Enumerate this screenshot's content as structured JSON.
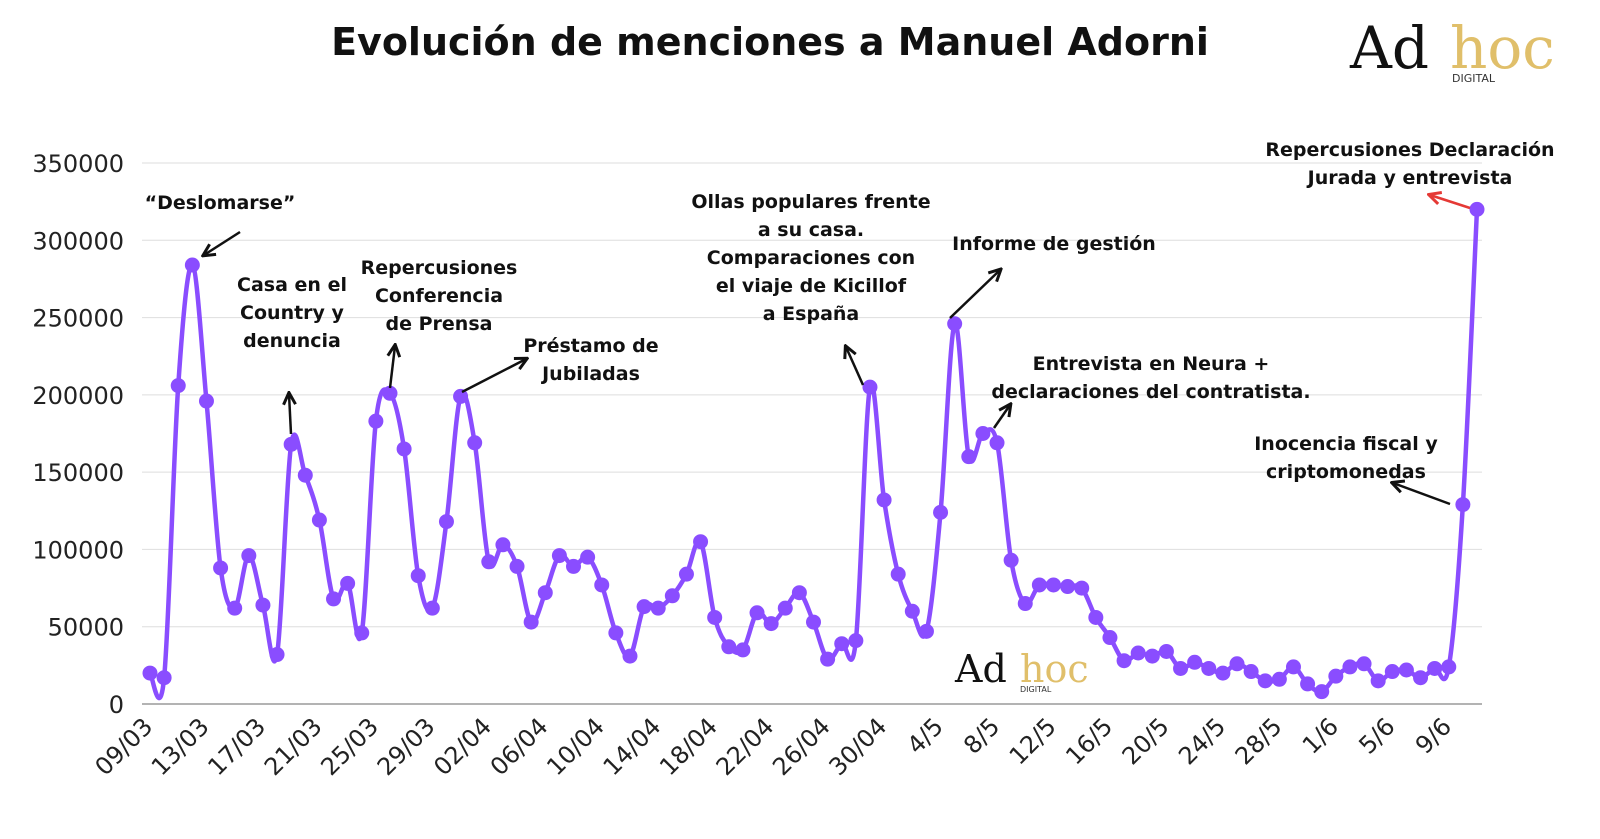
{
  "chart_data": {
    "type": "line",
    "title": "Evolución de menciones a Manuel Adorni",
    "xlabel": "",
    "ylabel": "",
    "ylim": [
      0,
      350000
    ],
    "yticks": [
      0,
      50000,
      100000,
      150000,
      200000,
      250000,
      300000,
      350000
    ],
    "grid": true,
    "xtick_labels": [
      "09/03",
      "13/03",
      "17/03",
      "21/03",
      "25/03",
      "29/03",
      "02/04",
      "06/04",
      "10/04",
      "14/04",
      "18/04",
      "22/04",
      "26/04",
      "30/04",
      "4/5",
      "8/5",
      "12/5",
      "16/5",
      "20/5",
      "24/5",
      "28/5",
      "1/6",
      "5/6",
      "9/6"
    ],
    "color": "#8a4dff",
    "series": [
      {
        "values": [
          20000,
          17000,
          206000,
          284000,
          196000,
          88000,
          62000,
          96000,
          64000,
          32000,
          168000,
          148000,
          119000,
          68000,
          78000,
          46000,
          183000,
          201000,
          165000,
          83000,
          62000,
          118000,
          199000,
          169000,
          92000,
          103000,
          89000,
          53000,
          72000,
          96000,
          89000,
          95000,
          77000,
          46000,
          31000,
          63000,
          62000,
          70000,
          84000,
          105000,
          56000,
          37000,
          35000,
          59000,
          52000,
          62000,
          72000,
          53000,
          29000,
          39000,
          41000,
          205000,
          132000,
          84000,
          60000,
          47000,
          124000,
          246000,
          160000,
          175000,
          169000,
          93000,
          65000,
          77000,
          77000,
          76000,
          75000,
          56000,
          43000,
          28000,
          33000,
          31000,
          34000,
          23000,
          27000,
          23000,
          20000,
          26000,
          21000,
          15000,
          16000,
          24000,
          13000,
          8000,
          18000,
          24000,
          26000,
          15000,
          21000,
          22000,
          17000,
          23000,
          24000,
          129000,
          320000
        ]
      }
    ],
    "annotations": [
      {
        "lines": [
          "“Deslomarse”"
        ]
      },
      {
        "lines": [
          "Casa en el",
          "Country y",
          "denuncia"
        ]
      },
      {
        "lines": [
          "Repercusiones",
          "Conferencia",
          "de Prensa"
        ]
      },
      {
        "lines": [
          "Préstamo de",
          "Jubiladas"
        ]
      },
      {
        "lines": [
          "Ollas populares frente",
          "a su casa.",
          "Comparaciones con",
          "el viaje de Kicillof",
          "a España"
        ]
      },
      {
        "lines": [
          "Informe de gestión"
        ]
      },
      {
        "lines": [
          "Entrevista en Neura +",
          "declaraciones del contratista."
        ]
      },
      {
        "lines": [
          "Inocencia fiscal y",
          "criptomonedas"
        ]
      },
      {
        "lines": [
          "Repercusiones Declaración",
          "Jurada y entrevista"
        ]
      }
    ]
  },
  "logo": {
    "ad": "Ad",
    "hoc": "hoc",
    "digital": "DIGITAL",
    "hoc_color": "#e0bf6a"
  }
}
